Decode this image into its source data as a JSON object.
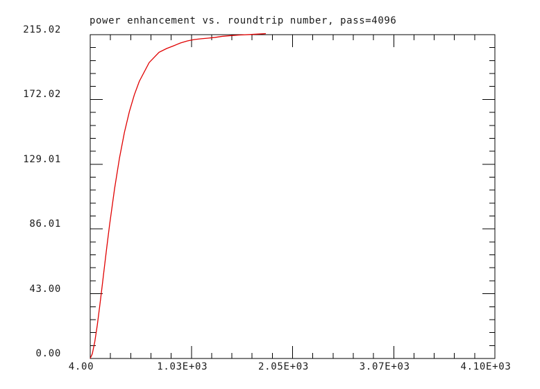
{
  "window": {
    "background": "#ffffff"
  },
  "chart_data": {
    "type": "line",
    "title": "power enhancement vs. roundtrip number, pass=4096",
    "xlabel": "",
    "ylabel": "",
    "xlim": [
      4,
      4096
    ],
    "ylim": [
      0,
      215.02
    ],
    "grid": false,
    "legend": false,
    "frame_color": "#000000",
    "tick_style": "inward-all-sides",
    "minor_ticks_per_division": 5,
    "x_ticks": {
      "values": [
        4,
        1027,
        2050,
        3073,
        4096
      ],
      "labels": [
        "4.00",
        "1.03E+03",
        "2.05E+03",
        "3.07E+03",
        "4.10E+03"
      ]
    },
    "y_ticks": {
      "values": [
        0,
        43.004,
        86.008,
        129.012,
        172.016,
        215.02
      ],
      "labels": [
        "0.00",
        "43.00",
        "86.01",
        "129.01",
        "172.02",
        "215.02"
      ]
    },
    "series": [
      {
        "name": "power enhancement",
        "color": "#e00000",
        "points": [
          [
            4,
            0.1
          ],
          [
            25,
            3.1
          ],
          [
            50,
            11.1
          ],
          [
            75,
            22.0
          ],
          [
            100,
            34.8
          ],
          [
            125,
            48.3
          ],
          [
            150,
            62.2
          ],
          [
            175,
            75.8
          ],
          [
            200,
            88.9
          ],
          [
            250,
            112.7
          ],
          [
            300,
            133.2
          ],
          [
            350,
            150.2
          ],
          [
            400,
            164.0
          ],
          [
            450,
            175.1
          ],
          [
            500,
            184.0
          ],
          [
            600,
            196.5
          ],
          [
            700,
            203.3
          ],
          [
            776,
            205.8
          ],
          [
            846,
            207.6
          ],
          [
            916,
            209.5
          ],
          [
            987,
            210.9
          ],
          [
            1057,
            211.8
          ],
          [
            1127,
            212.3
          ],
          [
            1197,
            212.7
          ],
          [
            1267,
            213.2
          ],
          [
            1337,
            213.9
          ],
          [
            1408,
            214.3
          ],
          [
            1513,
            214.8
          ],
          [
            1618,
            215.1
          ],
          [
            1780,
            215.7
          ]
        ]
      }
    ]
  }
}
